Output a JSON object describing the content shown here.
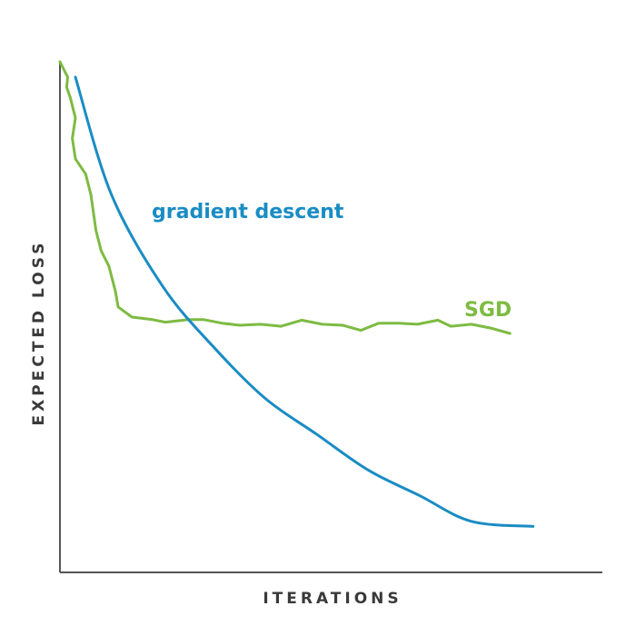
{
  "chart_data": {
    "type": "line",
    "title": "",
    "xlabel": "ITERATIONS",
    "ylabel": "EXPECTED LOSS",
    "xlim": [
      0,
      100
    ],
    "ylim": [
      0,
      100
    ],
    "grid": false,
    "axis_ticks": false,
    "colors": {
      "axis": "#555555",
      "gradient_descent": "#1a8cc4",
      "sgd": "#7dbb42"
    },
    "series": [
      {
        "name": "gradient descent",
        "color": "#1a8cc4",
        "x": [
          3,
          10,
          20,
          30,
          40,
          50,
          60,
          70,
          80,
          92
        ],
        "y": [
          97,
          74,
          56,
          44,
          34,
          27,
          20,
          15,
          10,
          9
        ]
      },
      {
        "name": "SGD",
        "color": "#7dbb42",
        "x": [
          0,
          1.5,
          1.3,
          2,
          3,
          2.4,
          3,
          5,
          6,
          7,
          8,
          9.5,
          10.8,
          11.3,
          14,
          18,
          20.5,
          25,
          28,
          31.5,
          35,
          39,
          43,
          47,
          51,
          55,
          58.5,
          62,
          66,
          69.5,
          73.5,
          76,
          80,
          84,
          87.5
        ],
        "y": [
          100,
          97,
          95,
          93,
          89,
          85,
          81,
          78,
          74,
          67,
          63,
          60,
          55,
          52,
          50,
          49.5,
          49,
          49.5,
          49.5,
          48.8,
          48.4,
          48.6,
          48.2,
          49.4,
          48.6,
          48.4,
          47.4,
          48.8,
          48.8,
          48.6,
          49.4,
          48.2,
          48.6,
          47.8,
          46.8
        ]
      }
    ],
    "annotations": [
      {
        "text": "gradient descent",
        "color": "#1a8cc4"
      },
      {
        "text": "SGD",
        "color": "#7dbb42"
      }
    ]
  }
}
